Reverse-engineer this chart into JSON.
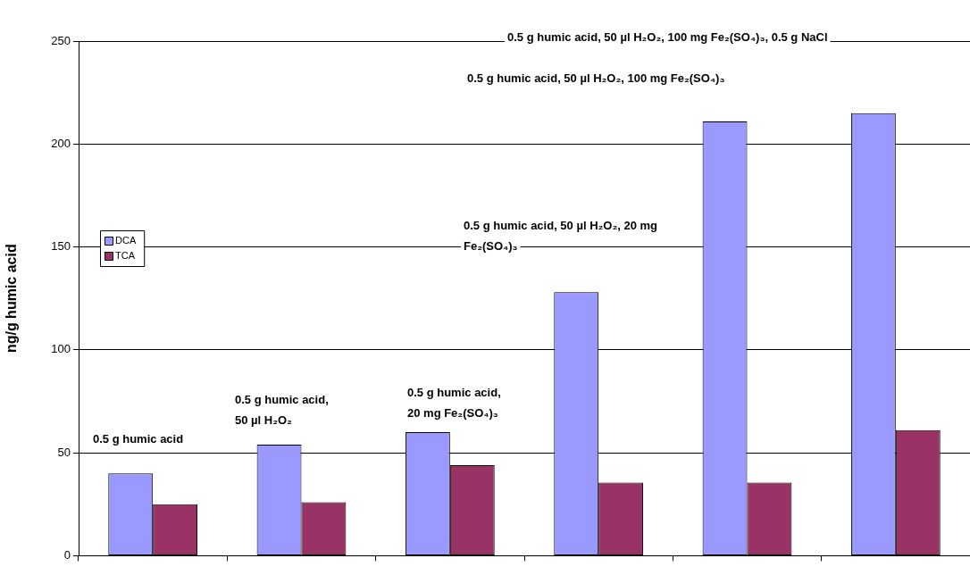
{
  "chart_data": {
    "type": "bar",
    "ylabel": "ng/g humic acid",
    "categories": [
      null,
      null,
      null,
      null,
      null,
      null
    ],
    "series": [
      {
        "name": "DCA",
        "color": "#9999ff",
        "values": [
          40,
          54,
          60,
          128,
          211,
          215
        ]
      },
      {
        "name": "TCA",
        "color": "#993366",
        "values": [
          25,
          26,
          44,
          35.5,
          35.5,
          61
        ]
      }
    ],
    "ylim": [
      0,
      250
    ],
    "yticks": [
      0,
      50,
      100,
      150,
      200,
      250
    ],
    "grid": "y",
    "legend": "left",
    "annotations": [
      "0.5 g humic acid",
      "0.5 g humic acid, 50 µl H₂O₂",
      "0.5 g humic acid, 20 mg Fe₂(SO₄)₃",
      "0.5 g humic acid, 50 µl H₂O₂, 20 mg  Fe₂(SO₄)₃",
      "0.5 g humic acid, 50 µl H₂O₂, 100 mg Fe₂(SO₄)₃",
      "0.5 g humic acid, 50 µl H₂O₂, 100 mg Fe₂(SO₄)₃, 0.5 g NaCl"
    ]
  }
}
